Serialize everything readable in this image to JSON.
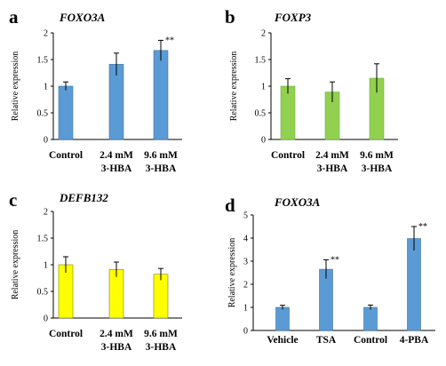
{
  "chart_data": [
    {
      "panel": "a",
      "type": "bar",
      "title": "FOXO3A",
      "ylabel": "Relative expression",
      "ylim": [
        0,
        2
      ],
      "yticks": [
        "0",
        "0.5",
        "1",
        "1.5",
        "2"
      ],
      "tick_values": [
        0,
        0.5,
        1,
        1.5,
        2
      ],
      "categories": [
        [
          "Control"
        ],
        [
          "2.4 mM",
          "3-HBA"
        ],
        [
          "9.6 mM",
          "3-HBA"
        ]
      ],
      "values": [
        1.0,
        1.41,
        1.67
      ],
      "errors": [
        0.08,
        0.21,
        0.19
      ],
      "significance": [
        "",
        "",
        "**"
      ],
      "color": "#5b9bd5",
      "edge": "#41719c"
    },
    {
      "panel": "b",
      "type": "bar",
      "title": "FOXP3",
      "ylabel": "Relative expression",
      "ylim": [
        0,
        2
      ],
      "yticks": [
        "0",
        "0.5",
        "1",
        "1.5",
        "2"
      ],
      "tick_values": [
        0,
        0.5,
        1,
        1.5,
        2
      ],
      "categories": [
        [
          "Control"
        ],
        [
          "2.4 mM",
          "3-HBA"
        ],
        [
          "9.6 mM",
          "3-HBA"
        ]
      ],
      "values": [
        1.0,
        0.89,
        1.15
      ],
      "errors": [
        0.14,
        0.19,
        0.27
      ],
      "significance": [
        "",
        "",
        ""
      ],
      "color": "#92d050",
      "edge": "#70ad47"
    },
    {
      "panel": "c",
      "type": "bar",
      "title": "DEFB132",
      "ylabel": "Relative expression",
      "ylim": [
        0,
        2
      ],
      "yticks": [
        "0",
        "0.5",
        "1",
        "1.5",
        "2"
      ],
      "tick_values": [
        0,
        0.5,
        1,
        1.5,
        2
      ],
      "categories": [
        [
          "Control"
        ],
        [
          "2.4 mM",
          "3-HBA"
        ],
        [
          "9.6 mM",
          "3-HBA"
        ]
      ],
      "values": [
        1.0,
        0.91,
        0.82
      ],
      "errors": [
        0.15,
        0.14,
        0.11
      ],
      "significance": [
        "",
        "",
        ""
      ],
      "color": "#ffff00",
      "edge": "#7f7f00"
    },
    {
      "panel": "d",
      "type": "bar",
      "title": "FOXO3A",
      "ylabel": "Relative expression",
      "ylim": [
        0,
        5
      ],
      "yticks": [
        "0",
        "1",
        "2",
        "3",
        "4",
        "5"
      ],
      "tick_values": [
        0,
        1,
        2,
        3,
        4,
        5
      ],
      "categories": [
        [
          "Vehicle"
        ],
        [
          "TSA"
        ],
        [
          "Control"
        ],
        [
          "4-PBA"
        ]
      ],
      "values": [
        1.0,
        2.65,
        1.0,
        3.98
      ],
      "errors": [
        0.09,
        0.41,
        0.1,
        0.52
      ],
      "significance": [
        "",
        "**",
        "",
        "**"
      ],
      "color": "#5b9bd5",
      "edge": "#41719c"
    }
  ]
}
